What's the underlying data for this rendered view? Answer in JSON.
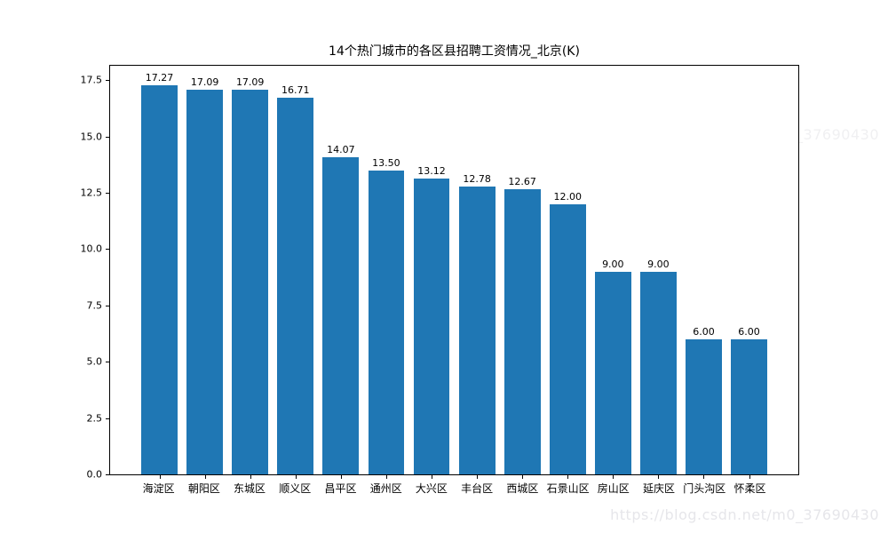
{
  "title": "14个热门城市的各区县招聘工资情况_北京(K)",
  "watermark": {
    "text": "https://blog.csdn.net/m0_37690430"
  },
  "chart_data": {
    "type": "bar",
    "title": "14个热门城市的各区县招聘工资情况_北京(K)",
    "xlabel": "",
    "ylabel": "",
    "categories": [
      "海淀区",
      "朝阳区",
      "东城区",
      "顺义区",
      "昌平区",
      "通州区",
      "大兴区",
      "丰台区",
      "西城区",
      "石景山区",
      "房山区",
      "延庆区",
      "门头沟区",
      "怀柔区"
    ],
    "values": [
      17.27,
      17.09,
      17.09,
      16.71,
      14.07,
      13.5,
      13.12,
      12.78,
      12.67,
      12.0,
      9.0,
      9.0,
      6.0,
      6.0
    ],
    "bar_labels": [
      "17.27",
      "17.09",
      "17.09",
      "16.71",
      "14.07",
      "13.50",
      "13.12",
      "12.78",
      "12.67",
      "12.00",
      "9.00",
      "9.00",
      "6.00",
      "6.00"
    ],
    "ylim": [
      0,
      18.14
    ],
    "yticks": [
      0,
      2.5,
      5,
      7.5,
      10,
      12.5,
      15,
      17.5
    ],
    "ytick_labels": [
      "0.0",
      "2.5",
      "5.0",
      "7.5",
      "10.0",
      "12.5",
      "15.0",
      "17.5"
    ],
    "bar_color": "#1f77b4",
    "grid": false,
    "legend": null,
    "background_color": "#ffffff"
  }
}
